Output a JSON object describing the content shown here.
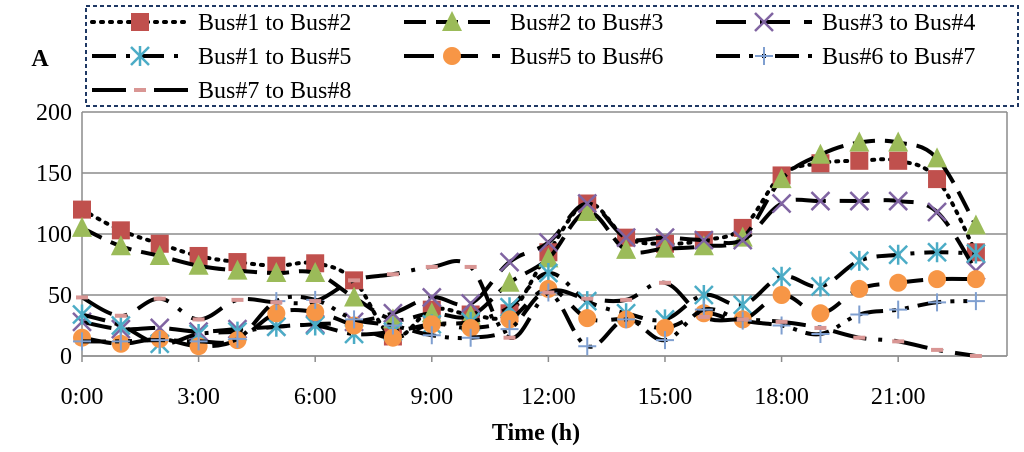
{
  "chart_data": {
    "type": "line",
    "title": "",
    "xlabel": "Time (h)",
    "ylabel": "A",
    "ylim": [
      0,
      200
    ],
    "yticks": [
      "0",
      "50",
      "100",
      "150",
      "200"
    ],
    "xticks": [
      "0:00",
      "3:00",
      "6:00",
      "9:00",
      "12:00",
      "15:00",
      "18:00",
      "21:00"
    ],
    "x": [
      0,
      1,
      2,
      3,
      4,
      5,
      6,
      7,
      8,
      9,
      10,
      11,
      12,
      13,
      14,
      15,
      16,
      17,
      18,
      19,
      20,
      21,
      22,
      23
    ],
    "grid": "horizontal",
    "legend_position": "top",
    "series": [
      {
        "name": "Bus#1 to Bus#2",
        "color": "#C0504D",
        "marker": "square",
        "dash": "dot",
        "values": [
          120,
          103,
          92,
          82,
          77,
          74,
          76,
          62,
          16,
          38,
          34,
          35,
          85,
          125,
          97,
          92,
          95,
          105,
          148,
          158,
          160,
          160,
          145,
          85
        ]
      },
      {
        "name": "Bus#2 to Bus#3",
        "color": "#9BBB59",
        "marker": "triangle",
        "dash": "dash",
        "values": [
          105,
          90,
          82,
          74,
          70,
          68,
          68,
          48,
          30,
          35,
          33,
          60,
          80,
          118,
          87,
          88,
          90,
          97,
          145,
          165,
          175,
          175,
          162,
          107
        ]
      },
      {
        "name": "Bus#3 to Bus#4",
        "color": "#8064A2",
        "marker": "x",
        "dash": "longdash",
        "values": [
          28,
          22,
          23,
          20,
          22,
          24,
          26,
          28,
          35,
          48,
          43,
          77,
          93,
          125,
          97,
          97,
          95,
          95,
          125,
          127,
          127,
          127,
          118,
          70
        ]
      },
      {
        "name": "Bus#1 to Bus#5",
        "color": "#4BACC6",
        "marker": "asterisk",
        "dash": "dashdot",
        "values": [
          34,
          25,
          10,
          18,
          20,
          24,
          25,
          18,
          20,
          26,
          28,
          40,
          68,
          45,
          35,
          30,
          50,
          42,
          65,
          57,
          78,
          83,
          85,
          84
        ]
      },
      {
        "name": "Bus#5 to Bus#6",
        "color": "#F79646",
        "marker": "circle",
        "dash": "longdash",
        "values": [
          15,
          10,
          14,
          8,
          13,
          35,
          36,
          25,
          15,
          26,
          23,
          30,
          55,
          31,
          30,
          23,
          35,
          30,
          50,
          35,
          55,
          60,
          63,
          63
        ]
      },
      {
        "name": "Bus#6 to Bus#7",
        "color": "#7F9FD0",
        "marker": "plus",
        "dash": "dashdotdot",
        "values": [
          12,
          12,
          13,
          12,
          14,
          45,
          46,
          30,
          25,
          17,
          15,
          22,
          52,
          8,
          30,
          13,
          38,
          29,
          25,
          18,
          34,
          38,
          44,
          45
        ]
      },
      {
        "name": "Bus#7 to Bus#8",
        "color": "#D99694",
        "marker": "dash",
        "dash": "longdashdot",
        "values": [
          48,
          33,
          47,
          30,
          46,
          44,
          45,
          62,
          67,
          73,
          73,
          15,
          52,
          47,
          46,
          60,
          32,
          30,
          28,
          23,
          15,
          12,
          5,
          0
        ]
      }
    ]
  }
}
